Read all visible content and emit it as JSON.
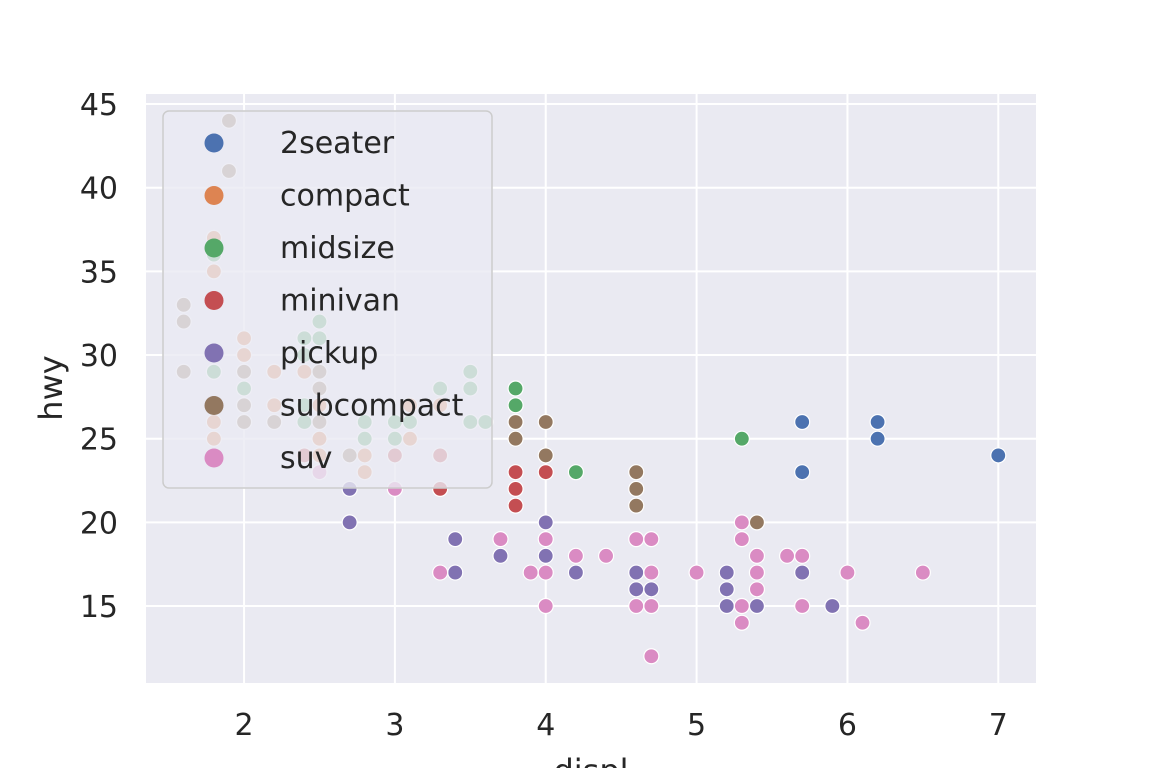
{
  "chart_data": {
    "type": "scatter",
    "title": "",
    "xlabel": "displ",
    "ylabel": "hwy",
    "xlim": [
      1.35,
      7.25
    ],
    "ylim": [
      10.4,
      45.6
    ],
    "xticks": [
      2,
      3,
      4,
      5,
      6,
      7
    ],
    "yticks": [
      15,
      20,
      25,
      30,
      35,
      40,
      45
    ],
    "grid": true,
    "legend_position": "upper-left",
    "background": "#eaeaf2",
    "series": [
      {
        "name": "2seater",
        "color": "#4c72b0",
        "points": [
          [
            5.7,
            26
          ],
          [
            5.7,
            23
          ],
          [
            6.2,
            26
          ],
          [
            6.2,
            25
          ],
          [
            7.0,
            24
          ]
        ]
      },
      {
        "name": "compact",
        "color": "#dd8452",
        "points": [
          [
            1.8,
            29
          ],
          [
            1.8,
            29
          ],
          [
            2.0,
            31
          ],
          [
            2.0,
            30
          ],
          [
            2.8,
            26
          ],
          [
            2.8,
            26
          ],
          [
            3.1,
            27
          ],
          [
            1.8,
            26
          ],
          [
            1.8,
            25
          ],
          [
            2.0,
            28
          ],
          [
            2.0,
            27
          ],
          [
            2.8,
            25
          ],
          [
            2.8,
            25
          ],
          [
            3.1,
            25
          ],
          [
            2.2,
            27
          ],
          [
            2.4,
            29
          ],
          [
            2.4,
            31
          ],
          [
            2.5,
            25
          ],
          [
            2.5,
            24
          ],
          [
            3.3,
            24
          ],
          [
            3.3,
            27
          ],
          [
            2.2,
            29
          ],
          [
            2.2,
            29
          ],
          [
            2.8,
            23
          ],
          [
            2.8,
            24
          ],
          [
            1.8,
            37
          ],
          [
            1.8,
            35
          ],
          [
            2.0,
            29
          ],
          [
            2.4,
            30
          ],
          [
            2.4,
            31
          ],
          [
            2.5,
            28
          ],
          [
            2.5,
            27
          ],
          [
            3.3,
            24
          ]
        ]
      },
      {
        "name": "midsize",
        "color": "#55a868",
        "points": [
          [
            2.8,
            26
          ],
          [
            3.1,
            26
          ],
          [
            2.4,
            27
          ],
          [
            2.4,
            30
          ],
          [
            3.5,
            26
          ],
          [
            3.5,
            29
          ],
          [
            1.8,
            36
          ],
          [
            1.8,
            29
          ],
          [
            2.0,
            26
          ],
          [
            2.0,
            28
          ],
          [
            2.8,
            25
          ],
          [
            3.0,
            25
          ],
          [
            3.1,
            26
          ],
          [
            3.8,
            28
          ],
          [
            3.8,
            27
          ],
          [
            3.8,
            26
          ],
          [
            4.2,
            23
          ],
          [
            5.3,
            25
          ],
          [
            2.5,
            32
          ],
          [
            2.5,
            31
          ],
          [
            2.4,
            26
          ],
          [
            3.0,
            26
          ],
          [
            3.3,
            28
          ],
          [
            3.5,
            26
          ],
          [
            3.6,
            26
          ],
          [
            3.5,
            28
          ],
          [
            2.4,
            31
          ]
        ]
      },
      {
        "name": "minivan",
        "color": "#c44e52",
        "points": [
          [
            2.4,
            24
          ],
          [
            3.0,
            24
          ],
          [
            3.3,
            22
          ],
          [
            3.3,
            22
          ],
          [
            3.3,
            24
          ],
          [
            3.8,
            23
          ],
          [
            3.8,
            22
          ],
          [
            3.8,
            21
          ],
          [
            4.0,
            23
          ]
        ]
      },
      {
        "name": "pickup",
        "color": "#8172b2",
        "points": [
          [
            2.7,
            22
          ],
          [
            2.7,
            20
          ],
          [
            3.4,
            19
          ],
          [
            3.4,
            17
          ],
          [
            3.7,
            18
          ],
          [
            4.0,
            18
          ],
          [
            4.0,
            20
          ],
          [
            4.2,
            17
          ],
          [
            4.6,
            16
          ],
          [
            4.6,
            17
          ],
          [
            4.7,
            16
          ],
          [
            5.2,
            16
          ],
          [
            5.2,
            15
          ],
          [
            5.2,
            17
          ],
          [
            5.4,
            15
          ],
          [
            5.7,
            17
          ],
          [
            5.9,
            15
          ]
        ]
      },
      {
        "name": "subcompact",
        "color": "#937860",
        "points": [
          [
            3.8,
            26
          ],
          [
            3.8,
            25
          ],
          [
            4.0,
            26
          ],
          [
            4.0,
            24
          ],
          [
            4.6,
            21
          ],
          [
            4.6,
            22
          ],
          [
            4.6,
            23
          ],
          [
            5.4,
            20
          ],
          [
            1.6,
            33
          ],
          [
            1.6,
            32
          ],
          [
            1.6,
            29
          ],
          [
            1.8,
            27
          ],
          [
            1.8,
            27
          ],
          [
            1.9,
            44
          ],
          [
            1.9,
            41
          ],
          [
            2.0,
            29
          ],
          [
            2.0,
            26
          ],
          [
            2.0,
            27
          ],
          [
            2.2,
            26
          ],
          [
            2.5,
            29
          ],
          [
            2.5,
            28
          ],
          [
            2.5,
            26
          ],
          [
            2.7,
            24
          ]
        ]
      },
      {
        "name": "suv",
        "color": "#da8bc3",
        "points": [
          [
            2.5,
            23
          ],
          [
            3.0,
            22
          ],
          [
            3.3,
            17
          ],
          [
            3.7,
            19
          ],
          [
            3.9,
            17
          ],
          [
            4.0,
            19
          ],
          [
            4.0,
            17
          ],
          [
            4.0,
            15
          ],
          [
            4.2,
            18
          ],
          [
            4.4,
            18
          ],
          [
            4.6,
            19
          ],
          [
            4.6,
            15
          ],
          [
            4.7,
            19
          ],
          [
            4.7,
            17
          ],
          [
            4.7,
            15
          ],
          [
            4.7,
            12
          ],
          [
            5.0,
            17
          ],
          [
            5.3,
            20
          ],
          [
            5.3,
            19
          ],
          [
            5.3,
            15
          ],
          [
            5.3,
            14
          ],
          [
            5.4,
            18
          ],
          [
            5.4,
            17
          ],
          [
            5.4,
            16
          ],
          [
            5.6,
            18
          ],
          [
            5.7,
            18
          ],
          [
            5.7,
            15
          ],
          [
            6.0,
            17
          ],
          [
            6.1,
            14
          ],
          [
            6.5,
            17
          ]
        ]
      }
    ]
  }
}
